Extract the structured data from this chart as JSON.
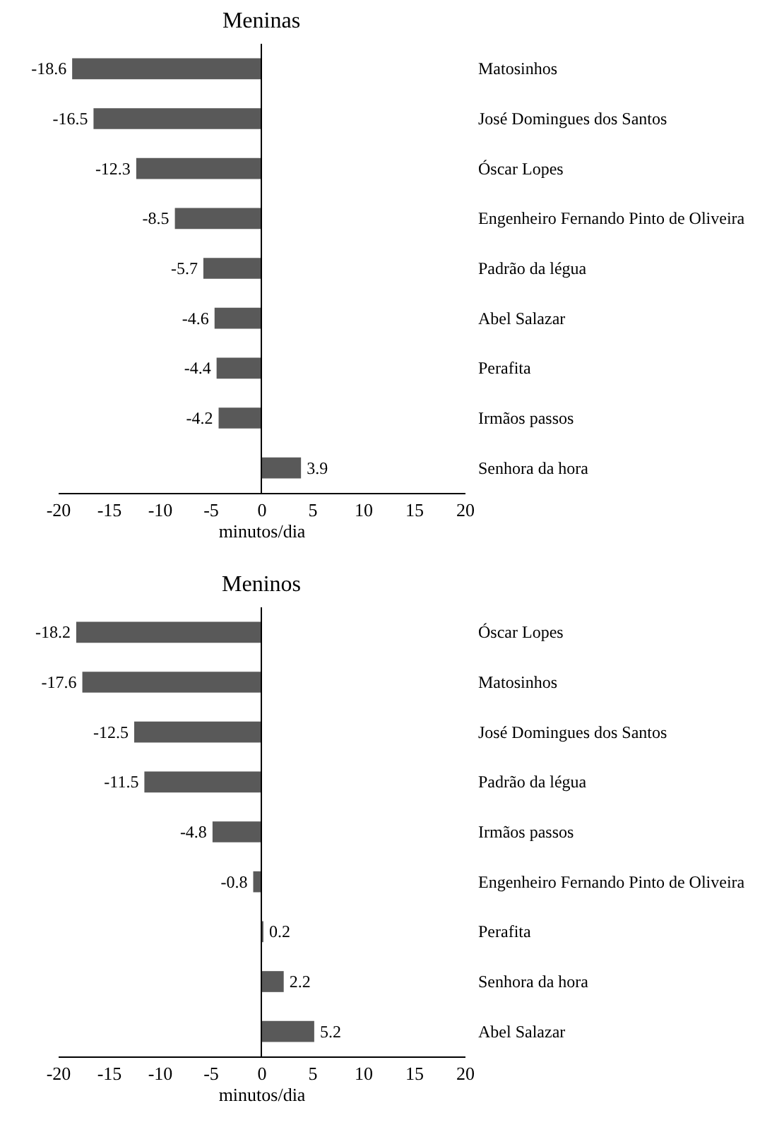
{
  "chart_data": [
    {
      "type": "bar",
      "orientation": "horizontal",
      "title": "Meninas",
      "xlabel": "minutos/dia",
      "categories": [
        "Matosinhos",
        "José Domingues dos Santos",
        "Óscar Lopes",
        "Engenheiro Fernando Pinto de Oliveira",
        "Padrão da légua",
        "Abel Salazar",
        "Perafita",
        "Irmãos passos",
        "Senhora da hora"
      ],
      "values": [
        -18.6,
        -16.5,
        -12.3,
        -8.5,
        -5.7,
        -4.6,
        -4.4,
        -4.2,
        3.9
      ],
      "color": "#595959",
      "xlim": [
        -20,
        20
      ],
      "xticks": [
        -20,
        -15,
        -10,
        -5,
        0,
        5,
        10,
        15,
        20
      ],
      "data_labels": true,
      "ref_lines": [
        {
          "axis": "x",
          "value": 0
        }
      ]
    },
    {
      "type": "bar",
      "orientation": "horizontal",
      "title": "Meninos",
      "xlabel": "minutos/dia",
      "categories": [
        "Óscar Lopes",
        "Matosinhos",
        "José Domingues dos Santos",
        "Padrão da légua",
        "Irmãos passos",
        "Engenheiro Fernando Pinto de Oliveira",
        "Perafita",
        "Senhora da hora",
        "Abel Salazar"
      ],
      "values": [
        -18.2,
        -17.6,
        -12.5,
        -11.5,
        -4.8,
        -0.8,
        0.2,
        2.2,
        5.2
      ],
      "color": "#595959",
      "xlim": [
        -20,
        20
      ],
      "xticks": [
        -20,
        -15,
        -10,
        -5,
        0,
        5,
        10,
        15,
        20
      ],
      "data_labels": true,
      "ref_lines": [
        {
          "axis": "x",
          "value": 0
        }
      ]
    }
  ]
}
